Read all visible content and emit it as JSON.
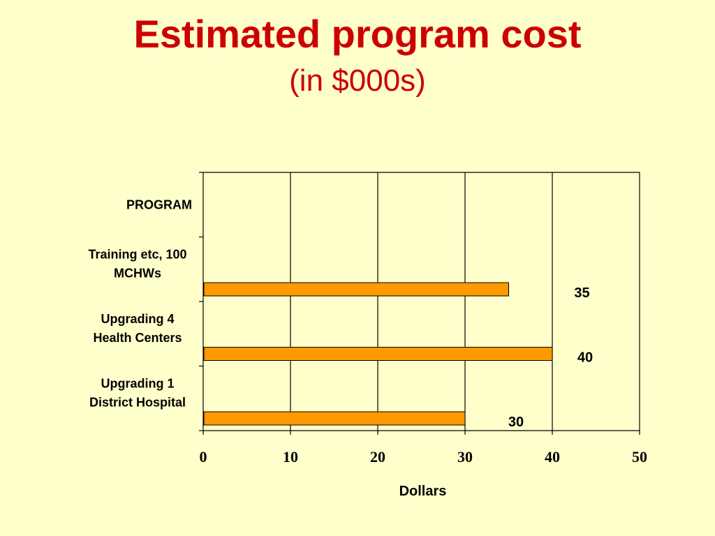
{
  "slide": {
    "title": "Estimated program cost",
    "subtitle": "(in $000s)",
    "background": "#FFFFCC",
    "title_color": "#CC0000"
  },
  "chart_data": {
    "type": "bar",
    "orientation": "horizontal",
    "categories": [
      [
        "PROGRAM"
      ],
      [
        "Training etc, 100",
        "MCHWs"
      ],
      [
        "Upgrading 4",
        "Health Centers"
      ],
      [
        "Upgrading 1",
        "District Hospital"
      ]
    ],
    "values": [
      null,
      35,
      40,
      30
    ],
    "data_labels": [
      "",
      "35",
      "40",
      "30"
    ],
    "xlabel": "Dollars",
    "ylabel": "",
    "xlim": [
      0,
      50
    ],
    "xticks": [
      0,
      10,
      20,
      30,
      40,
      50
    ],
    "grid": true,
    "bar_color": "#FF9900",
    "bar_edge_color": "#000000"
  }
}
